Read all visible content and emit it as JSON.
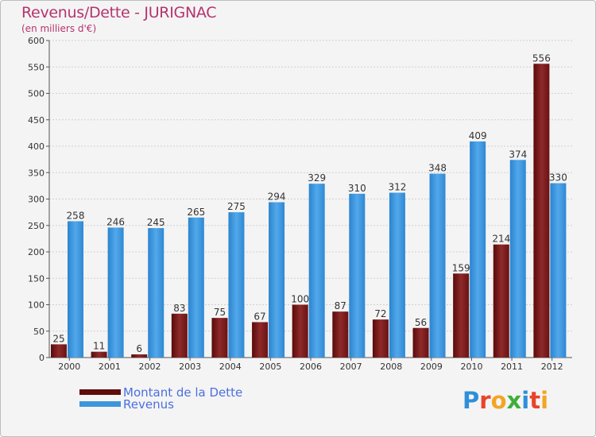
{
  "title": "Revenus/Dette - JURIGNAC",
  "subtitle": "(en milliers d'€)",
  "colors": {
    "dette": "#7a1c1c",
    "revenus": "#3d95dc",
    "title": "#b5336f",
    "legend_text": "#4b6fe0"
  },
  "legend": {
    "items": [
      {
        "label": "Montant de la Dette",
        "color": "#5e0c0c"
      },
      {
        "label": "Revenus",
        "color": "#3d95dc"
      }
    ]
  },
  "logo": {
    "text": "Proxiti",
    "letters": [
      {
        "ch": "P",
        "color": "#2f8fd8"
      },
      {
        "ch": "r",
        "color": "#e8442a"
      },
      {
        "ch": "o",
        "color": "#f2a623"
      },
      {
        "ch": "x",
        "color": "#3fae3a"
      },
      {
        "ch": "i",
        "color": "#2f8fd8"
      },
      {
        "ch": "t",
        "color": "#e8442a"
      },
      {
        "ch": "i",
        "color": "#f2a623"
      }
    ]
  },
  "chart_data": {
    "type": "bar",
    "categories": [
      "2000",
      "2001",
      "2002",
      "2003",
      "2004",
      "2005",
      "2006",
      "2007",
      "2008",
      "2009",
      "2010",
      "2011",
      "2012"
    ],
    "series": [
      {
        "name": "Montant de la Dette",
        "values": [
          25,
          11,
          6,
          83,
          75,
          67,
          100,
          87,
          72,
          56,
          159,
          214,
          556
        ]
      },
      {
        "name": "Revenus",
        "values": [
          258,
          246,
          245,
          265,
          275,
          294,
          329,
          310,
          312,
          348,
          409,
          374,
          330
        ]
      }
    ],
    "ylim": [
      0,
      600
    ],
    "yticks": [
      0,
      50,
      100,
      150,
      200,
      250,
      300,
      350,
      400,
      450,
      500,
      550,
      600
    ],
    "grid": true,
    "legend_position": "bottom-left"
  }
}
